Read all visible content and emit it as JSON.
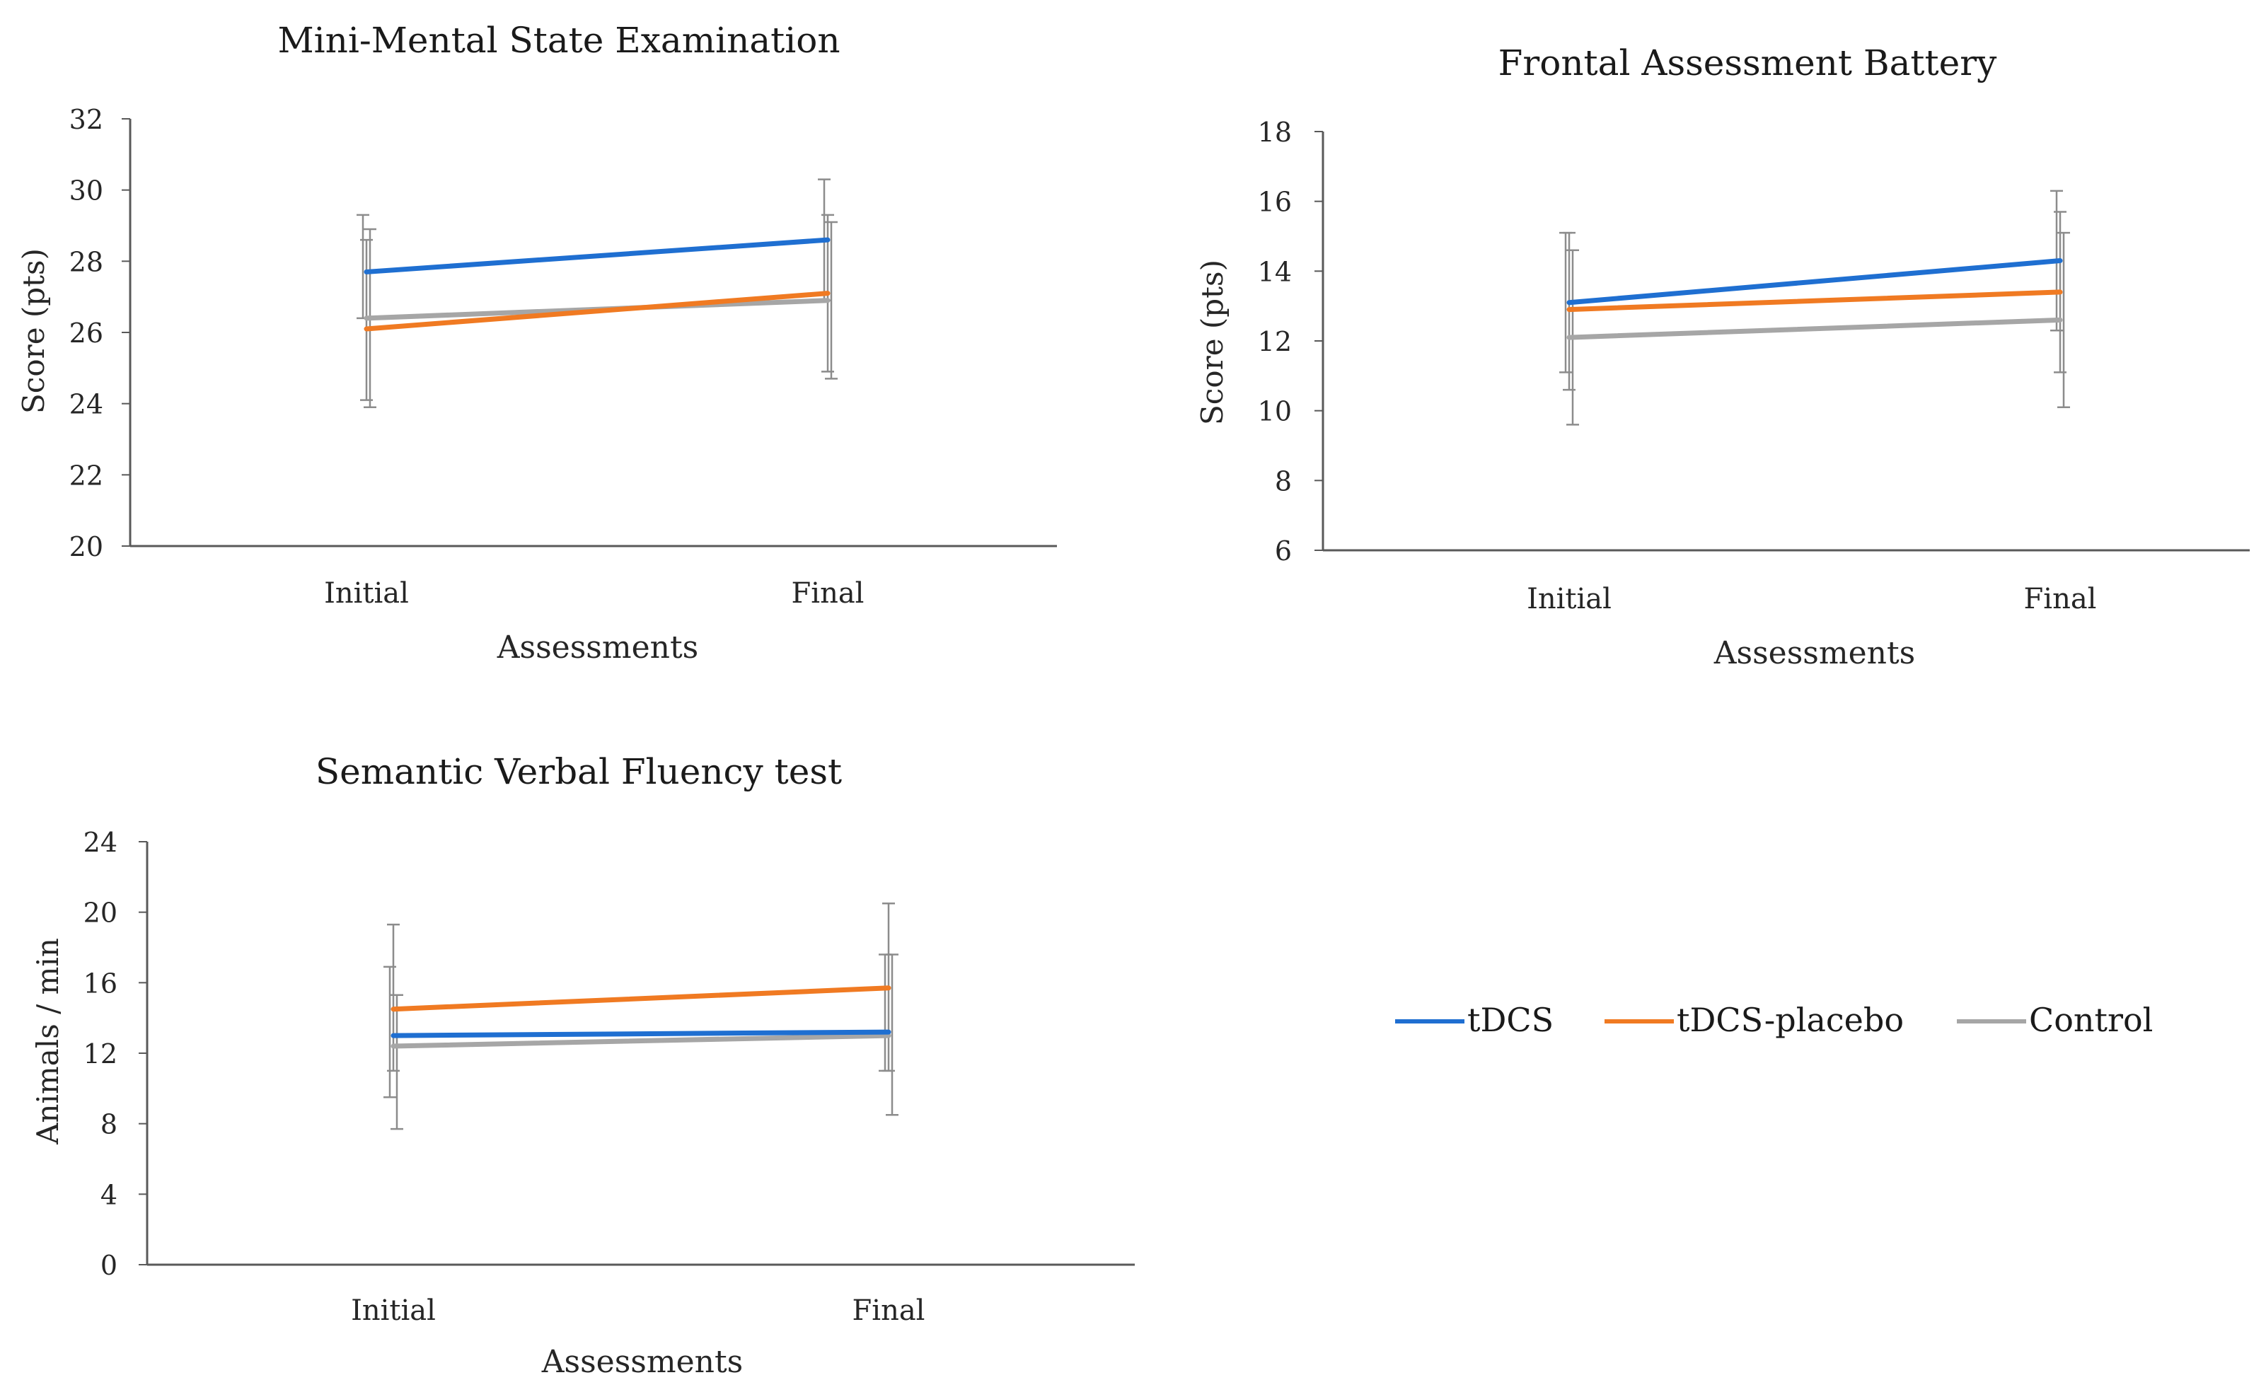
{
  "figure": {
    "legend": [
      {
        "name": "tDCS",
        "color": "#1f6fd1"
      },
      {
        "name": "tDCS-placebo",
        "color": "#f07a22"
      },
      {
        "name": "Control",
        "color": "#a6a6a6"
      }
    ]
  },
  "chart_data": [
    {
      "type": "line",
      "title": "Mini-Mental State Examination",
      "xlabel": "Assessments",
      "ylabel": "Score (pts)",
      "categories": [
        "Initial",
        "Final"
      ],
      "ylim": [
        20,
        32
      ],
      "yticks": [
        "20",
        "22",
        "24",
        "26",
        "28",
        "30",
        "32"
      ],
      "series": [
        {
          "name": "tDCS",
          "values": [
            27.7,
            28.6
          ],
          "error_low": [
            26.4,
            26.9
          ],
          "error_high": [
            29.3,
            30.3
          ]
        },
        {
          "name": "tDCS-placebo",
          "values": [
            26.1,
            27.1
          ],
          "error_low": [
            24.1,
            24.9
          ],
          "error_high": [
            28.6,
            29.3
          ]
        },
        {
          "name": "Control",
          "values": [
            26.4,
            26.9
          ],
          "error_low": [
            23.9,
            24.7
          ],
          "error_high": [
            28.9,
            29.1
          ]
        }
      ]
    },
    {
      "type": "line",
      "title": "Frontal Assessment Battery",
      "xlabel": "Assessments",
      "ylabel": "Score (pts)",
      "categories": [
        "Initial",
        "Final"
      ],
      "ylim": [
        6,
        18
      ],
      "yticks": [
        "6",
        "8",
        "10",
        "12",
        "14",
        "16",
        "18"
      ],
      "series": [
        {
          "name": "tDCS",
          "values": [
            13.1,
            14.3
          ],
          "error_low": [
            11.1,
            12.3
          ],
          "error_high": [
            15.1,
            16.3
          ]
        },
        {
          "name": "tDCS-placebo",
          "values": [
            12.9,
            13.4
          ],
          "error_low": [
            10.6,
            11.1
          ],
          "error_high": [
            15.1,
            15.7
          ]
        },
        {
          "name": "Control",
          "values": [
            12.1,
            12.6
          ],
          "error_low": [
            9.6,
            10.1
          ],
          "error_high": [
            14.6,
            15.1
          ]
        }
      ]
    },
    {
      "type": "line",
      "title": "Semantic Verbal Fluency test",
      "xlabel": "Assessments",
      "ylabel": "Animals / min",
      "categories": [
        "Initial",
        "Final"
      ],
      "ylim": [
        0,
        24
      ],
      "yticks": [
        "0",
        "4",
        "8",
        "12",
        "16",
        "20",
        "24"
      ],
      "series": [
        {
          "name": "tDCS",
          "values": [
            13.0,
            13.2
          ],
          "error_low": [
            9.5,
            11.0
          ],
          "error_high": [
            16.9,
            17.6
          ]
        },
        {
          "name": "tDCS-placebo",
          "values": [
            14.5,
            15.7
          ],
          "error_low": [
            11.0,
            11.0
          ],
          "error_high": [
            19.3,
            20.5
          ]
        },
        {
          "name": "Control",
          "values": [
            12.4,
            13.0
          ],
          "error_low": [
            7.7,
            8.5
          ],
          "error_high": [
            15.3,
            17.6
          ]
        }
      ]
    }
  ]
}
